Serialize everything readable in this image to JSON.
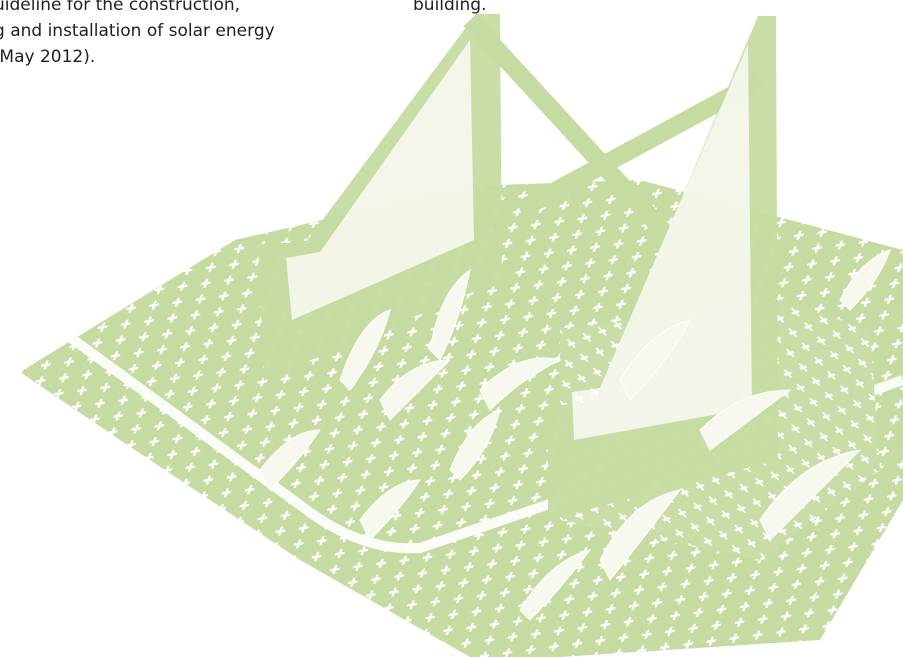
{
  "left_column": {
    "lines": [
      "uideline for the construction,",
      "g and installation of solar energy",
      " May 2012)."
    ]
  },
  "right_column": {
    "lines": [
      "building."
    ]
  },
  "illustration": {
    "subject": "green-roof-solar-mounting-illustration",
    "colors": {
      "structure": "#c9dda6",
      "structure_dark": "#b8d08e",
      "grid_light": "#dbe9c3",
      "plant": "#f6faee"
    }
  }
}
